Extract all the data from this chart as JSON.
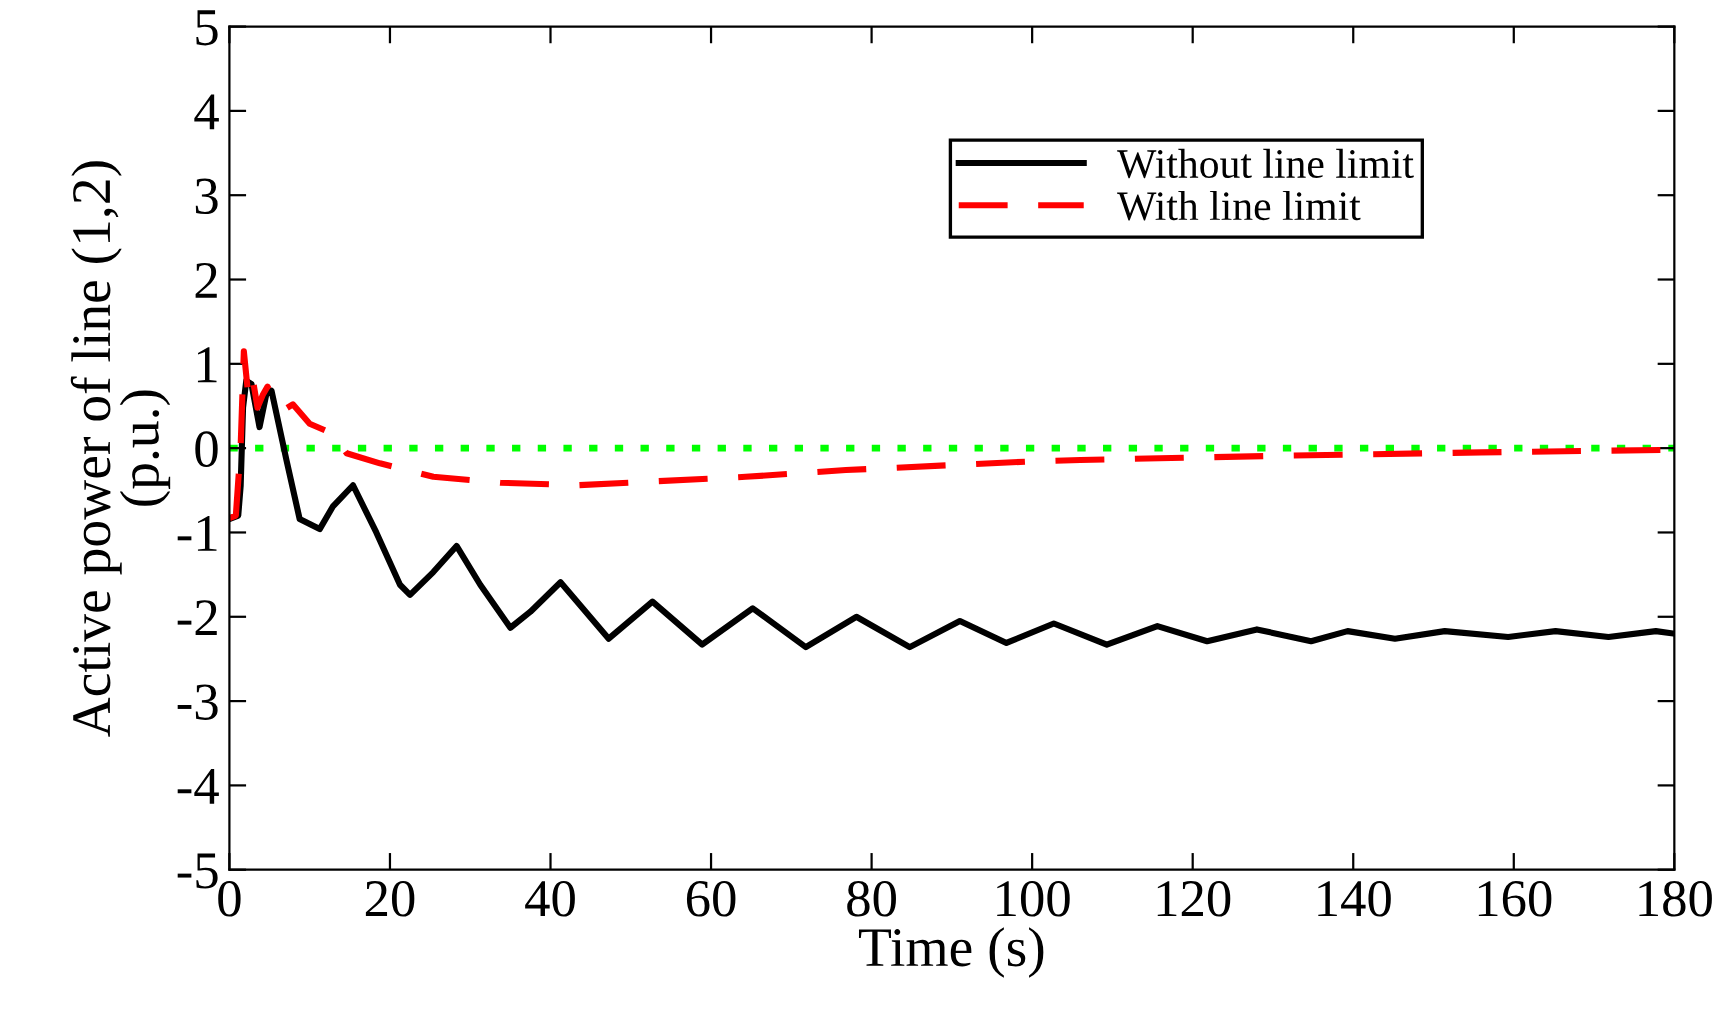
{
  "chart_data": {
    "type": "line",
    "xlabel": "Time (s)",
    "ylabel": "Active power of line (1,2)\n(p.u.)",
    "xlim": [
      0,
      180
    ],
    "xticks": [
      0,
      20,
      40,
      60,
      80,
      100,
      120,
      140,
      160,
      180
    ],
    "ylim": [
      -5,
      5
    ],
    "yticks": [
      -5,
      -4,
      -3,
      -2,
      -1,
      0,
      1,
      2,
      3,
      4,
      5
    ],
    "grid": false,
    "legend": "top right",
    "ref_lines": [
      {
        "axis": "y",
        "value": 0,
        "color": "#00ff00",
        "line_style": "dotted"
      }
    ],
    "series": [
      {
        "name": "Without line limit",
        "color": "#000000",
        "line_style": "solid",
        "x": [
          0,
          1.1,
          1.4,
          1.7,
          2.1,
          2.75,
          3.75,
          4.6,
          5.25,
          7.1,
          8.75,
          11.25,
          12.9,
          15.4,
          18.3,
          21.25,
          22.5,
          25.4,
          28.3,
          31.25,
          35,
          37.5,
          41.25,
          47.25,
          52.7,
          58.9,
          65.2,
          71.8,
          78.1,
          84.75,
          91,
          96.8,
          102.7,
          109.3,
          115.6,
          121.8,
          128,
          134.75,
          139.3,
          145.2,
          151.4,
          159.3,
          165.2,
          171.8,
          177.7,
          180
        ],
        "values": [
          -0.84,
          -0.8,
          -0.45,
          0.48,
          0.8,
          0.76,
          0.25,
          0.64,
          0.68,
          -0.14,
          -0.84,
          -0.96,
          -0.69,
          -0.44,
          -1.0,
          -1.62,
          -1.74,
          -1.47,
          -1.16,
          -1.62,
          -2.13,
          -1.94,
          -1.59,
          -2.26,
          -1.82,
          -2.33,
          -1.9,
          -2.36,
          -2.0,
          -2.36,
          -2.05,
          -2.31,
          -2.08,
          -2.33,
          -2.11,
          -2.29,
          -2.15,
          -2.29,
          -2.17,
          -2.26,
          -2.17,
          -2.24,
          -2.17,
          -2.24,
          -2.17,
          -2.2
        ]
      },
      {
        "name": "With line limit",
        "color": "#ff0000",
        "line_style": "dashed",
        "x": [
          0,
          0.8,
          1.4,
          1.8,
          2.25,
          2.75,
          3.5,
          4.2,
          4.75,
          5.7,
          6.7,
          7.9,
          10,
          12.9,
          14.6,
          18.75,
          25.4,
          33.75,
          43.3,
          64.3,
          76.8,
          99.3,
          106,
          131,
          156,
          180
        ],
        "values": [
          -0.83,
          -0.8,
          0.02,
          1.15,
          0.72,
          0.91,
          0.48,
          0.64,
          0.73,
          0.56,
          0.45,
          0.52,
          0.29,
          0.17,
          -0.06,
          -0.18,
          -0.34,
          -0.41,
          -0.44,
          -0.34,
          -0.26,
          -0.16,
          -0.14,
          -0.09,
          -0.05,
          -0.02
        ]
      }
    ]
  }
}
